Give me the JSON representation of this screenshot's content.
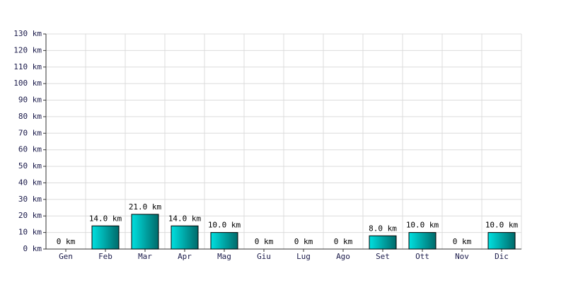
{
  "chart_data": {
    "type": "bar",
    "categories": [
      "Gen",
      "Feb",
      "Mar",
      "Apr",
      "Mag",
      "Giu",
      "Lug",
      "Ago",
      "Set",
      "Ott",
      "Nov",
      "Dic"
    ],
    "values": [
      0,
      14,
      21,
      14,
      10,
      0,
      0,
      0,
      8,
      10,
      0,
      10
    ],
    "value_labels": [
      "0 km",
      "14.0 km",
      "21.0 km",
      "14.0 km",
      "10.0 km",
      "0 km",
      "0 km",
      "0 km",
      "8.0 km",
      "10.0 km",
      "0 km",
      "10.0 km"
    ],
    "color": "#00e0e0",
    "ylim": [
      0,
      130
    ],
    "yticks": [
      {
        "value": 0,
        "label": "0 km"
      },
      {
        "value": 10,
        "label": "10 km"
      },
      {
        "value": 20,
        "label": "20 km"
      },
      {
        "value": 30,
        "label": "30 km"
      },
      {
        "value": 40,
        "label": "40 km"
      },
      {
        "value": 50,
        "label": "50 km"
      },
      {
        "value": 60,
        "label": "60 km"
      },
      {
        "value": 70,
        "label": "70 km"
      },
      {
        "value": 80,
        "label": "80 km"
      },
      {
        "value": 90,
        "label": "90 km"
      },
      {
        "value": 100,
        "label": "100 km"
      },
      {
        "value": 110,
        "label": "110 km"
      },
      {
        "value": 120,
        "label": "120 km"
      },
      {
        "value": 130,
        "label": "130 km"
      }
    ],
    "grid": true
  }
}
